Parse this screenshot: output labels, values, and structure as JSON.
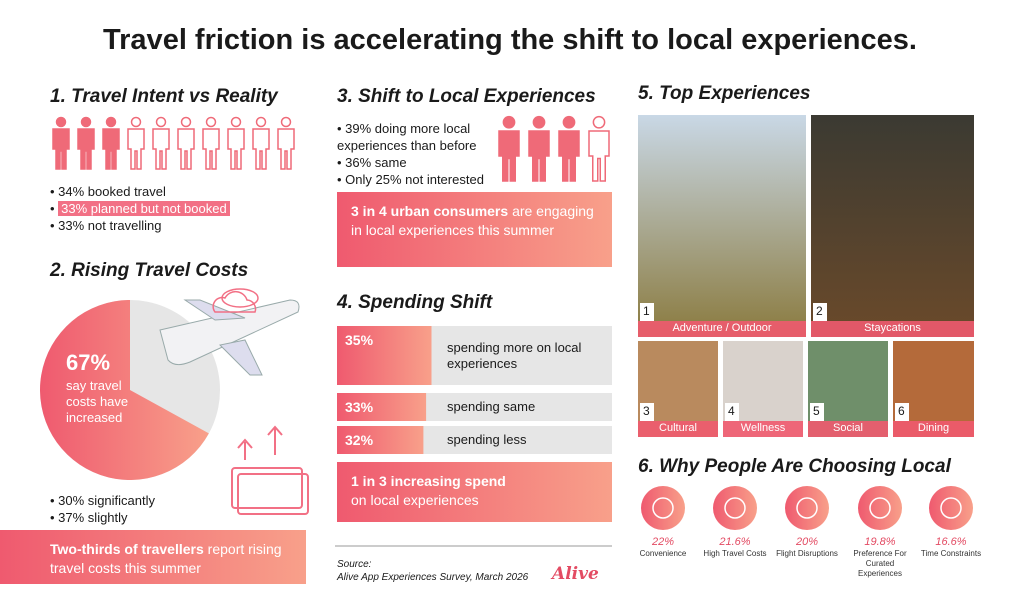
{
  "title": "Travel friction is accelerating the shift to local experiences.",
  "intent": {
    "heading": "1. Travel Intent vs Reality",
    "items": [
      "34% booked travel",
      "33% planned but not booked",
      "33% not travelling"
    ]
  },
  "costs": {
    "heading": "2. Rising Travel Costs",
    "pie": {
      "value": 67,
      "value_label": "67%",
      "caption": "say travel costs have increased"
    },
    "items": [
      "30% significantly",
      "37% slightly"
    ],
    "callout_bold": "Two-thirds of travellers",
    "callout_rest": "report rising travel costs this summer"
  },
  "local": {
    "heading": "3. Shift to Local Experiences",
    "items": [
      "39% doing more local experiences than before",
      "36% same",
      "Only 25% not interested"
    ],
    "callout_bold": "3 in 4 urban consumers",
    "callout_rest": "are engaging in local experiences this summer"
  },
  "spending": {
    "heading": "4. Spending Shift",
    "rows": [
      {
        "value": 35,
        "value_label": "35%",
        "label": "spending more on local experiences"
      },
      {
        "value": 33,
        "value_label": "33%",
        "label": "spending same"
      },
      {
        "value": 32,
        "value_label": "32%",
        "label": "spending less"
      }
    ],
    "callout_bold": "1 in 3 increasing spend",
    "callout_rest": "on local experiences"
  },
  "source": {
    "label": "Source:",
    "text": "Alive App Experiences Survey, March 2026",
    "logo": "Alive"
  },
  "experiences": {
    "heading": "5. Top Experiences",
    "items": [
      {
        "rank": "1",
        "label": "Adventure / Outdoor"
      },
      {
        "rank": "2",
        "label": "Staycations"
      },
      {
        "rank": "3",
        "label": "Cultural"
      },
      {
        "rank": "4",
        "label": "Wellness"
      },
      {
        "rank": "5",
        "label": "Social"
      },
      {
        "rank": "6",
        "label": "Dining"
      }
    ]
  },
  "reasons": {
    "heading": "6. Why People Are Choosing Local",
    "items": [
      {
        "value_label": "22%",
        "label": "Convenience"
      },
      {
        "value_label": "21.6%",
        "label": "High Travel Costs"
      },
      {
        "value_label": "20%",
        "label": "Flight Disruptions"
      },
      {
        "value_label": "19.8%",
        "label": "Preference For Curated Experiences"
      },
      {
        "value_label": "16.6%",
        "label": "Time Constraints"
      }
    ]
  }
}
